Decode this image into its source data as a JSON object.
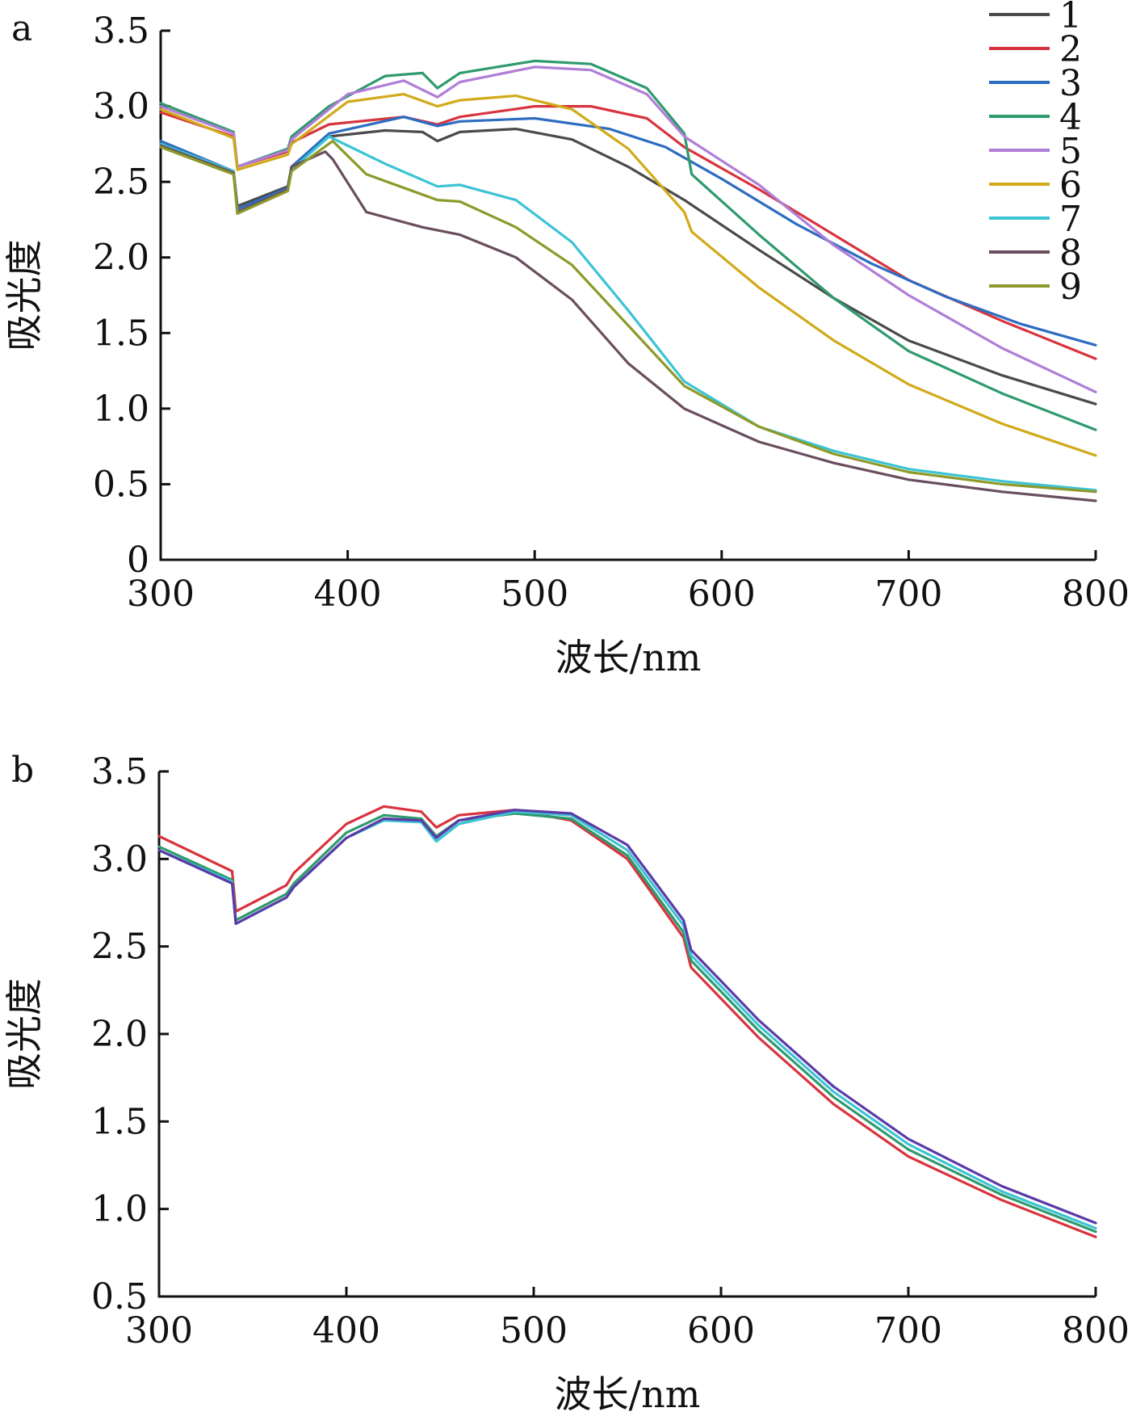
{
  "chart_data": [
    {
      "type": "line",
      "panel_label": "a",
      "xlabel": "波长/nm",
      "ylabel": "吸光度",
      "xlim": [
        300,
        800
      ],
      "ylim": [
        0,
        3.5
      ],
      "xticks": [
        300,
        400,
        500,
        600,
        700,
        800
      ],
      "yticks": [
        0,
        0.5,
        1.0,
        1.5,
        2.0,
        2.5,
        3.0,
        3.5
      ],
      "ytick_labels": [
        "0",
        "0.5",
        "1.0",
        "1.5",
        "2.0",
        "2.5",
        "3.0",
        "3.5"
      ],
      "legend": "top-right",
      "series": [
        {
          "name": "1",
          "color": "#4a4a4a",
          "points": [
            [
              300,
              2.75
            ],
            [
              339,
              2.57
            ],
            [
              341,
              2.34
            ],
            [
              368,
              2.47
            ],
            [
              370,
              2.6
            ],
            [
              390,
              2.8
            ],
            [
              420,
              2.84
            ],
            [
              440,
              2.83
            ],
            [
              448,
              2.77
            ],
            [
              460,
              2.83
            ],
            [
              490,
              2.85
            ],
            [
              520,
              2.78
            ],
            [
              550,
              2.6
            ],
            [
              580,
              2.38
            ],
            [
              620,
              2.05
            ],
            [
              660,
              1.73
            ],
            [
              700,
              1.45
            ],
            [
              750,
              1.22
            ],
            [
              800,
              1.03
            ]
          ]
        },
        {
          "name": "2",
          "color": "#d8343e",
          "points": [
            [
              300,
              2.96
            ],
            [
              339,
              2.8
            ],
            [
              341,
              2.6
            ],
            [
              368,
              2.7
            ],
            [
              370,
              2.76
            ],
            [
              390,
              2.88
            ],
            [
              430,
              2.93
            ],
            [
              448,
              2.88
            ],
            [
              460,
              2.93
            ],
            [
              500,
              3.0
            ],
            [
              530,
              3.0
            ],
            [
              560,
              2.92
            ],
            [
              580,
              2.73
            ],
            [
              620,
              2.45
            ],
            [
              660,
              2.15
            ],
            [
              700,
              1.85
            ],
            [
              750,
              1.58
            ],
            [
              800,
              1.33
            ]
          ]
        },
        {
          "name": "3",
          "color": "#2d6cc0",
          "points": [
            [
              300,
              2.77
            ],
            [
              339,
              2.57
            ],
            [
              341,
              2.32
            ],
            [
              368,
              2.46
            ],
            [
              370,
              2.6
            ],
            [
              390,
              2.82
            ],
            [
              430,
              2.93
            ],
            [
              448,
              2.87
            ],
            [
              460,
              2.9
            ],
            [
              500,
              2.92
            ],
            [
              540,
              2.85
            ],
            [
              570,
              2.73
            ],
            [
              600,
              2.52
            ],
            [
              640,
              2.22
            ],
            [
              680,
              1.96
            ],
            [
              720,
              1.74
            ],
            [
              760,
              1.56
            ],
            [
              800,
              1.42
            ]
          ]
        },
        {
          "name": "4",
          "color": "#2f9a6e",
          "points": [
            [
              300,
              3.02
            ],
            [
              339,
              2.83
            ],
            [
              341,
              2.6
            ],
            [
              368,
              2.72
            ],
            [
              370,
              2.8
            ],
            [
              390,
              3.0
            ],
            [
              420,
              3.2
            ],
            [
              440,
              3.22
            ],
            [
              448,
              3.12
            ],
            [
              460,
              3.22
            ],
            [
              500,
              3.3
            ],
            [
              530,
              3.28
            ],
            [
              560,
              3.12
            ],
            [
              580,
              2.82
            ],
            [
              584,
              2.55
            ],
            [
              620,
              2.15
            ],
            [
              660,
              1.73
            ],
            [
              700,
              1.38
            ],
            [
              750,
              1.1
            ],
            [
              800,
              0.86
            ]
          ]
        },
        {
          "name": "5",
          "color": "#b07ed6",
          "points": [
            [
              300,
              3.0
            ],
            [
              339,
              2.82
            ],
            [
              341,
              2.6
            ],
            [
              368,
              2.71
            ],
            [
              370,
              2.78
            ],
            [
              400,
              3.08
            ],
            [
              430,
              3.17
            ],
            [
              448,
              3.06
            ],
            [
              460,
              3.16
            ],
            [
              500,
              3.26
            ],
            [
              530,
              3.24
            ],
            [
              560,
              3.08
            ],
            [
              580,
              2.8
            ],
            [
              620,
              2.48
            ],
            [
              660,
              2.08
            ],
            [
              700,
              1.75
            ],
            [
              750,
              1.4
            ],
            [
              800,
              1.11
            ]
          ]
        },
        {
          "name": "6",
          "color": "#d1aa1a",
          "points": [
            [
              300,
              2.98
            ],
            [
              339,
              2.79
            ],
            [
              341,
              2.58
            ],
            [
              368,
              2.68
            ],
            [
              370,
              2.75
            ],
            [
              400,
              3.03
            ],
            [
              430,
              3.08
            ],
            [
              448,
              3.0
            ],
            [
              460,
              3.04
            ],
            [
              490,
              3.07
            ],
            [
              520,
              2.98
            ],
            [
              550,
              2.72
            ],
            [
              580,
              2.3
            ],
            [
              584,
              2.17
            ],
            [
              620,
              1.8
            ],
            [
              660,
              1.45
            ],
            [
              700,
              1.16
            ],
            [
              750,
              0.9
            ],
            [
              800,
              0.69
            ]
          ]
        },
        {
          "name": "7",
          "color": "#3cc4d4",
          "points": [
            [
              300,
              2.75
            ],
            [
              339,
              2.57
            ],
            [
              341,
              2.3
            ],
            [
              368,
              2.45
            ],
            [
              370,
              2.58
            ],
            [
              390,
              2.8
            ],
            [
              420,
              2.62
            ],
            [
              448,
              2.47
            ],
            [
              460,
              2.48
            ],
            [
              490,
              2.38
            ],
            [
              520,
              2.1
            ],
            [
              550,
              1.65
            ],
            [
              580,
              1.18
            ],
            [
              620,
              0.88
            ],
            [
              660,
              0.72
            ],
            [
              700,
              0.6
            ],
            [
              750,
              0.52
            ],
            [
              800,
              0.46
            ]
          ]
        },
        {
          "name": "8",
          "color": "#6a4e5e",
          "points": [
            [
              300,
              2.74
            ],
            [
              339,
              2.56
            ],
            [
              341,
              2.3
            ],
            [
              368,
              2.45
            ],
            [
              370,
              2.6
            ],
            [
              388,
              2.7
            ],
            [
              392,
              2.65
            ],
            [
              410,
              2.3
            ],
            [
              440,
              2.2
            ],
            [
              460,
              2.15
            ],
            [
              490,
              2.0
            ],
            [
              520,
              1.72
            ],
            [
              550,
              1.3
            ],
            [
              580,
              1.0
            ],
            [
              620,
              0.78
            ],
            [
              660,
              0.64
            ],
            [
              700,
              0.53
            ],
            [
              750,
              0.45
            ],
            [
              800,
              0.39
            ]
          ]
        },
        {
          "name": "9",
          "color": "#8d9a2a",
          "points": [
            [
              300,
              2.73
            ],
            [
              339,
              2.55
            ],
            [
              341,
              2.29
            ],
            [
              368,
              2.44
            ],
            [
              370,
              2.57
            ],
            [
              392,
              2.77
            ],
            [
              410,
              2.55
            ],
            [
              448,
              2.38
            ],
            [
              460,
              2.37
            ],
            [
              490,
              2.2
            ],
            [
              520,
              1.95
            ],
            [
              550,
              1.55
            ],
            [
              580,
              1.15
            ],
            [
              620,
              0.88
            ],
            [
              660,
              0.7
            ],
            [
              700,
              0.58
            ],
            [
              750,
              0.5
            ],
            [
              800,
              0.45
            ]
          ]
        }
      ]
    },
    {
      "type": "line",
      "panel_label": "b",
      "xlabel": "波长/nm",
      "ylabel": "吸光度",
      "xlim": [
        300,
        800
      ],
      "ylim": [
        0.5,
        3.5
      ],
      "xticks": [
        300,
        400,
        500,
        600,
        700,
        800
      ],
      "yticks": [
        0.5,
        1.0,
        1.5,
        2.0,
        2.5,
        3.0,
        3.5
      ],
      "ytick_labels": [
        "0.5",
        "1.0",
        "1.5",
        "2.0",
        "2.5",
        "3.0",
        "3.5"
      ],
      "series": [
        {
          "color": "#d8343e",
          "points": [
            [
              300,
              3.13
            ],
            [
              339,
              2.93
            ],
            [
              341,
              2.7
            ],
            [
              368,
              2.85
            ],
            [
              372,
              2.92
            ],
            [
              400,
              3.2
            ],
            [
              420,
              3.3
            ],
            [
              440,
              3.27
            ],
            [
              448,
              3.18
            ],
            [
              460,
              3.25
            ],
            [
              490,
              3.28
            ],
            [
              520,
              3.22
            ],
            [
              550,
              3.0
            ],
            [
              580,
              2.55
            ],
            [
              584,
              2.38
            ],
            [
              620,
              1.98
            ],
            [
              660,
              1.6
            ],
            [
              700,
              1.3
            ],
            [
              750,
              1.05
            ],
            [
              800,
              0.84
            ]
          ]
        },
        {
          "color": "#2f9a6e",
          "points": [
            [
              300,
              3.07
            ],
            [
              339,
              2.88
            ],
            [
              341,
              2.65
            ],
            [
              368,
              2.8
            ],
            [
              372,
              2.86
            ],
            [
              400,
              3.15
            ],
            [
              420,
              3.25
            ],
            [
              440,
              3.23
            ],
            [
              448,
              3.13
            ],
            [
              460,
              3.22
            ],
            [
              490,
              3.26
            ],
            [
              520,
              3.23
            ],
            [
              550,
              3.02
            ],
            [
              580,
              2.58
            ],
            [
              584,
              2.42
            ],
            [
              620,
              2.02
            ],
            [
              660,
              1.64
            ],
            [
              700,
              1.34
            ],
            [
              750,
              1.08
            ],
            [
              800,
              0.87
            ]
          ]
        },
        {
          "color": "#3cc4d4",
          "points": [
            [
              300,
              3.05
            ],
            [
              339,
              2.87
            ],
            [
              341,
              2.63
            ],
            [
              368,
              2.78
            ],
            [
              372,
              2.84
            ],
            [
              400,
              3.12
            ],
            [
              420,
              3.22
            ],
            [
              440,
              3.21
            ],
            [
              448,
              3.1
            ],
            [
              460,
              3.2
            ],
            [
              490,
              3.27
            ],
            [
              520,
              3.25
            ],
            [
              550,
              3.05
            ],
            [
              580,
              2.62
            ],
            [
              584,
              2.45
            ],
            [
              620,
              2.05
            ],
            [
              660,
              1.67
            ],
            [
              700,
              1.37
            ],
            [
              750,
              1.1
            ],
            [
              800,
              0.89
            ]
          ]
        },
        {
          "color": "#5b3aa8",
          "points": [
            [
              300,
              3.05
            ],
            [
              339,
              2.86
            ],
            [
              341,
              2.63
            ],
            [
              368,
              2.78
            ],
            [
              372,
              2.84
            ],
            [
              400,
              3.12
            ],
            [
              420,
              3.23
            ],
            [
              440,
              3.22
            ],
            [
              448,
              3.12
            ],
            [
              460,
              3.22
            ],
            [
              490,
              3.28
            ],
            [
              520,
              3.26
            ],
            [
              550,
              3.08
            ],
            [
              580,
              2.65
            ],
            [
              584,
              2.48
            ],
            [
              620,
              2.08
            ],
            [
              660,
              1.7
            ],
            [
              700,
              1.4
            ],
            [
              750,
              1.13
            ],
            [
              800,
              0.92
            ]
          ]
        }
      ]
    }
  ]
}
